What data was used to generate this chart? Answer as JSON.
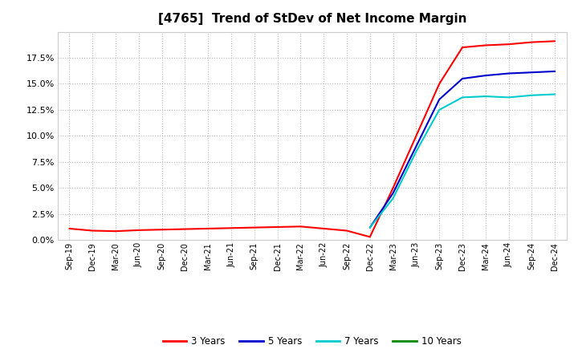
{
  "title": "[4765]  Trend of StDev of Net Income Margin",
  "title_fontsize": 11,
  "background_color": "#ffffff",
  "plot_bg_color": "#ffffff",
  "grid_color": "#b0b0b0",
  "x_labels": [
    "Sep-19",
    "Dec-19",
    "Mar-20",
    "Jun-20",
    "Sep-20",
    "Dec-20",
    "Mar-21",
    "Jun-21",
    "Sep-21",
    "Dec-21",
    "Mar-22",
    "Jun-22",
    "Sep-22",
    "Dec-22",
    "Mar-23",
    "Jun-23",
    "Sep-23",
    "Dec-23",
    "Mar-24",
    "Jun-24",
    "Sep-24",
    "Dec-24"
  ],
  "series": {
    "3 Years": {
      "color": "#ff0000",
      "values": [
        1.1,
        0.9,
        0.85,
        0.95,
        1.0,
        1.05,
        1.1,
        1.15,
        1.2,
        1.25,
        1.3,
        1.1,
        0.9,
        0.3,
        5.0,
        10.0,
        15.0,
        18.5,
        18.7,
        18.8,
        19.0,
        19.1
      ]
    },
    "5 Years": {
      "color": "#0000cc",
      "values": [
        null,
        null,
        null,
        null,
        null,
        null,
        null,
        null,
        null,
        null,
        null,
        null,
        null,
        1.2,
        4.5,
        9.0,
        13.5,
        15.5,
        15.8,
        16.0,
        16.1,
        16.2
      ]
    },
    "7 Years": {
      "color": "#00cccc",
      "values": [
        null,
        null,
        null,
        null,
        null,
        null,
        null,
        null,
        null,
        null,
        null,
        null,
        null,
        1.2,
        4.0,
        8.5,
        12.5,
        13.7,
        13.8,
        13.7,
        13.9,
        14.0
      ]
    },
    "10 Years": {
      "color": "#008800",
      "values": [
        null,
        null,
        null,
        null,
        null,
        null,
        null,
        null,
        null,
        null,
        null,
        null,
        null,
        null,
        null,
        null,
        null,
        null,
        null,
        null,
        null,
        null
      ]
    }
  },
  "ylim": [
    0,
    20
  ],
  "yticks": [
    0.0,
    2.5,
    5.0,
    7.5,
    10.0,
    12.5,
    15.0,
    17.5
  ],
  "legend_entries": [
    "3 Years",
    "5 Years",
    "7 Years",
    "10 Years"
  ],
  "legend_colors": [
    "#ff0000",
    "#0000cc",
    "#00cccc",
    "#008800"
  ]
}
